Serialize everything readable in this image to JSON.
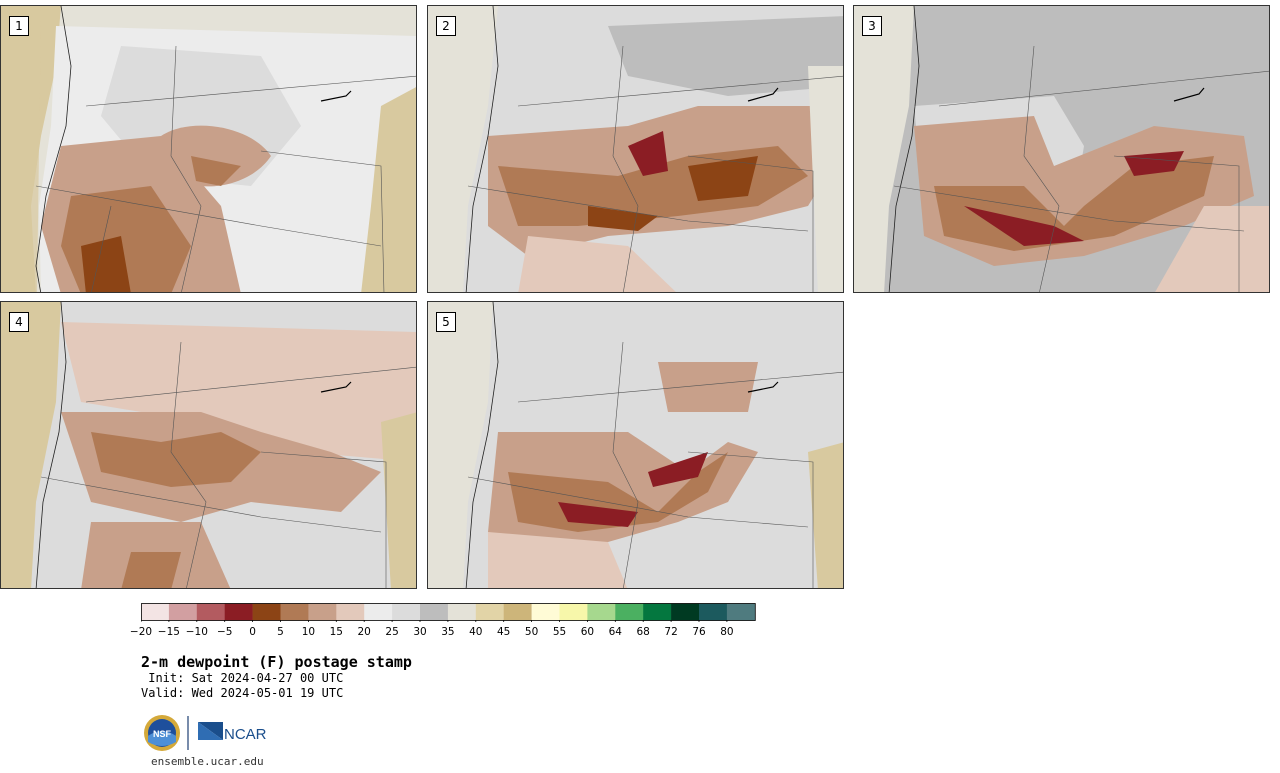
{
  "panels": [
    {
      "label": "1"
    },
    {
      "label": "2"
    },
    {
      "label": "3"
    },
    {
      "label": "4"
    },
    {
      "label": "5"
    }
  ],
  "colorbar": {
    "ticks": [
      "−20",
      "−15",
      "−10",
      "−5",
      "0",
      "5",
      "10",
      "15",
      "20",
      "25",
      "30",
      "35",
      "40",
      "45",
      "50",
      "55",
      "60",
      "64",
      "68",
      "72",
      "76",
      "80"
    ],
    "colors": [
      "#f3e4e4",
      "#d29fa1",
      "#b35b60",
      "#8b1d24",
      "#8c4415",
      "#b07a55",
      "#c8a08a",
      "#e3c9bb",
      "#ececec",
      "#dcdcdc",
      "#bdbdbd",
      "#e4e2d8",
      "#e2d4a7",
      "#cdb57a",
      "#fffbd6",
      "#f7f7aa",
      "#a6d88e",
      "#4bb061",
      "#04773f",
      "#003a22",
      "#1c5a5e",
      "#4f7b7f"
    ]
  },
  "caption": {
    "title": "2-m dewpoint (F) postage stamp",
    "init": " Init: Sat 2024-04-27 00 UTC",
    "valid": "Valid: Wed 2024-05-01 19 UTC"
  },
  "logo": {
    "nsf_text": "NSF",
    "ncar_text": "NCAR"
  },
  "footer": {
    "site": "ensemble.ucar.edu"
  },
  "colors": {
    "land_default": "#dcd9d2",
    "ocean": "#d8c99f",
    "border": "#333333"
  }
}
